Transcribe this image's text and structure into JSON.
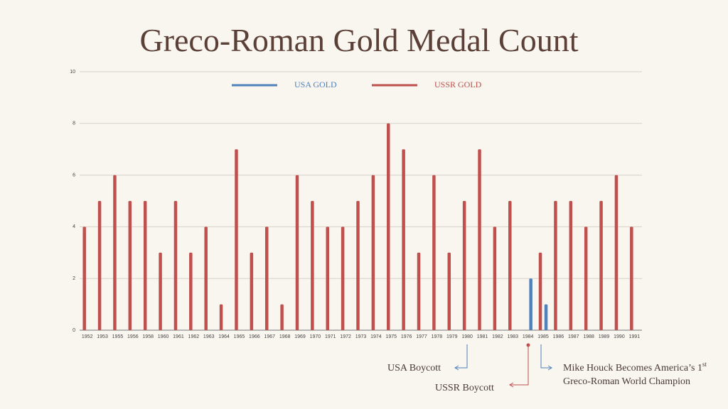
{
  "chart_data": {
    "type": "bar",
    "title": "Greco-Roman Gold Medal Count",
    "categories": [
      "1952",
      "1953",
      "1955",
      "1956",
      "1958",
      "1960",
      "1961",
      "1962",
      "1963",
      "1964",
      "1965",
      "1966",
      "1967",
      "1968",
      "1969",
      "1970",
      "1971",
      "1972",
      "1973",
      "1974",
      "1975",
      "1976",
      "1977",
      "1978",
      "1979",
      "1980",
      "1981",
      "1982",
      "1983",
      "1984",
      "1985",
      "1986",
      "1987",
      "1988",
      "1989",
      "1990",
      "1991"
    ],
    "series": [
      {
        "name": "USSR GOLD",
        "color": "#c0504d",
        "values": [
          4,
          5,
          6,
          5,
          5,
          3,
          5,
          3,
          4,
          1,
          7,
          3,
          4,
          1,
          6,
          5,
          4,
          4,
          5,
          6,
          8,
          7,
          3,
          6,
          3,
          5,
          7,
          4,
          5,
          0,
          3,
          5,
          5,
          4,
          5,
          6,
          4
        ]
      },
      {
        "name": "USA GOLD",
        "color": "#4f81bd",
        "values": [
          0,
          0,
          0,
          0,
          0,
          0,
          0,
          0,
          0,
          0,
          0,
          0,
          0,
          0,
          0,
          0,
          0,
          0,
          0,
          0,
          0,
          0,
          0,
          0,
          0,
          0,
          0,
          0,
          0,
          2,
          1,
          0,
          0,
          0,
          0,
          0,
          0
        ]
      }
    ],
    "ylim": [
      0,
      10
    ],
    "yticks": [
      0,
      2,
      4,
      6,
      8,
      10
    ],
    "grid": true,
    "annotations": {
      "usa_boycott": "USA Boycott",
      "ussr_boycott": "USSR Boycott",
      "houck_line1": "Mike Houck Becomes America’s 1",
      "houck_sup": "st",
      "houck_line2": "Greco-Roman World Champion"
    }
  }
}
